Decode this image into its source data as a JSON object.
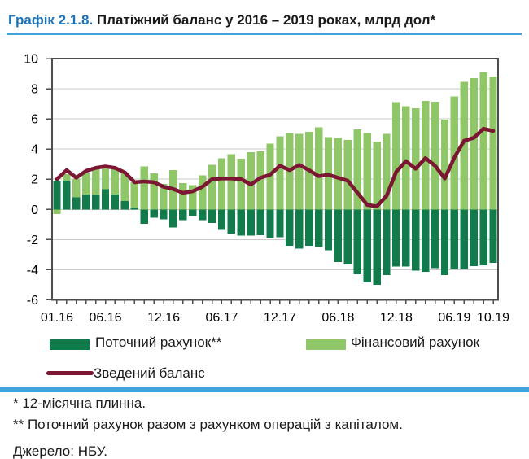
{
  "header": {
    "title_prefix": "Графік 2.1.8.",
    "title_rest": " Платіжний баланс у 2016 – 2019 роках, млрд дол*"
  },
  "colors": {
    "title_blue": "#1F74B8",
    "rule_blue": "#41A3DC",
    "text": "#1A1A1A",
    "plot_border": "#4D4D4D",
    "gridline": "#C9C9C9",
    "current_green": "#117B4B",
    "financial_green": "#8FC768",
    "balance_maroon": "#7C1733"
  },
  "chart_data": {
    "type": "bar",
    "subtype": "stacked bars with line overlay",
    "title": "Платіжний баланс у 2016 – 2019 роках, млрд дол",
    "xlabel": "",
    "ylabel": "",
    "ylim": [
      -6,
      10
    ],
    "ytick_step": 2,
    "grid": true,
    "legend_position": "bottom",
    "categories": [
      "01.16",
      "02.16",
      "03.16",
      "04.16",
      "05.16",
      "06.16",
      "07.16",
      "08.16",
      "09.16",
      "10.16",
      "11.16",
      "12.16",
      "01.17",
      "02.17",
      "03.17",
      "04.17",
      "05.17",
      "06.17",
      "07.17",
      "08.17",
      "09.17",
      "10.17",
      "11.17",
      "12.17",
      "01.18",
      "02.18",
      "03.18",
      "04.18",
      "05.18",
      "06.18",
      "07.18",
      "08.18",
      "09.18",
      "10.18",
      "11.18",
      "12.18",
      "01.19",
      "02.19",
      "03.19",
      "04.19",
      "05.19",
      "06.19",
      "07.19",
      "08.19",
      "09.19",
      "10.19"
    ],
    "series": [
      {
        "name": "Поточний рахунок**",
        "type": "bar",
        "color": "#117B4B",
        "values": [
          1.9,
          1.9,
          0.8,
          1.0,
          0.95,
          1.35,
          1.0,
          0.55,
          0.1,
          -0.95,
          -0.55,
          -0.65,
          -1.2,
          -0.7,
          -0.45,
          -0.7,
          -0.9,
          -1.35,
          -1.6,
          -1.75,
          -1.75,
          -1.7,
          -1.9,
          -1.85,
          -2.4,
          -2.6,
          -2.4,
          -2.5,
          -2.7,
          -3.5,
          -3.65,
          -4.3,
          -4.85,
          -5.0,
          -4.35,
          -3.8,
          -3.8,
          -4.05,
          -4.15,
          -3.9,
          -4.35,
          -3.95,
          -3.95,
          -3.75,
          -3.7,
          -3.55
        ]
      },
      {
        "name": "Фінансовий рахунок",
        "type": "bar",
        "color": "#8FC768",
        "values": [
          -0.3,
          0.45,
          1.25,
          1.4,
          1.8,
          1.5,
          1.75,
          1.9,
          1.7,
          2.85,
          2.4,
          1.7,
          2.6,
          1.75,
          1.6,
          2.25,
          2.95,
          3.4,
          3.65,
          3.35,
          3.8,
          3.85,
          4.35,
          4.85,
          5.05,
          5.0,
          5.15,
          5.45,
          4.8,
          4.75,
          4.6,
          5.3,
          5.05,
          4.5,
          5.0,
          7.1,
          6.85,
          6.7,
          7.2,
          7.15,
          5.95,
          7.5,
          8.45,
          8.7,
          9.1,
          8.8
        ]
      },
      {
        "name": "Зведений баланс",
        "type": "line",
        "color": "#7C1733",
        "values": [
          2.0,
          2.6,
          2.1,
          2.55,
          2.75,
          2.85,
          2.75,
          2.45,
          1.8,
          1.85,
          1.8,
          1.5,
          1.35,
          1.1,
          1.2,
          1.5,
          2.0,
          2.05,
          2.05,
          2.0,
          1.65,
          2.1,
          2.3,
          2.9,
          2.6,
          2.95,
          2.6,
          2.2,
          2.3,
          2.1,
          1.9,
          1.1,
          0.3,
          0.2,
          0.9,
          2.5,
          3.2,
          2.7,
          3.4,
          2.9,
          2.05,
          3.45,
          4.55,
          4.75,
          5.35,
          5.2
        ]
      }
    ],
    "ytick_values": [
      10,
      8,
      6,
      4,
      2,
      0,
      -2,
      -4,
      -6
    ],
    "ytick_labels": [
      "10",
      "8",
      "6",
      "4",
      "2",
      "0",
      "-2",
      "-4",
      "-6"
    ],
    "xticks": [
      {
        "label": "01.16",
        "i": 0
      },
      {
        "label": "06.16",
        "i": 5
      },
      {
        "label": "12.16",
        "i": 11
      },
      {
        "label": "06.17",
        "i": 17
      },
      {
        "label": "12.17",
        "i": 23
      },
      {
        "label": "06.18",
        "i": 29
      },
      {
        "label": "12.18",
        "i": 35
      },
      {
        "label": "06.19",
        "i": 41
      },
      {
        "label": "10.19",
        "i": 45
      }
    ]
  },
  "legend": {
    "current_label": "Поточний рахунок**",
    "financial_label": "Фінансовий рахунок",
    "balance_label": "Зведений баланс"
  },
  "footnotes": {
    "line1": "* 12-місячна плинна.",
    "line2": "** Поточний рахунок разом з рахунком операцій з капіталом.",
    "source": "Джерело: НБУ."
  }
}
